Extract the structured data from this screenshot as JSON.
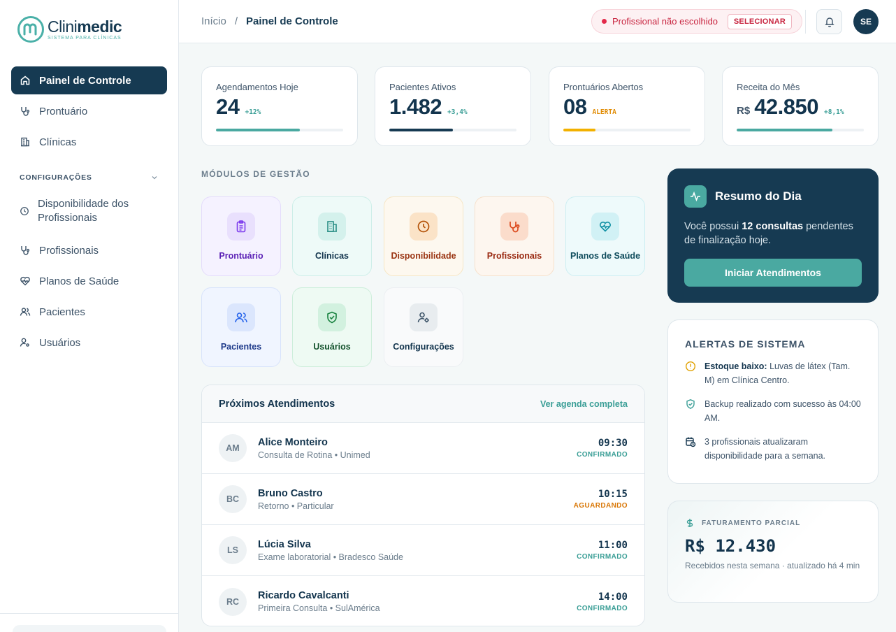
{
  "brand": {
    "name_light": "Clini",
    "name_bold": "medic",
    "tagline": "SISTEMA PARA CLÍNICAS",
    "accent": "#4ab0a8",
    "primary": "#163a52"
  },
  "sidebar": {
    "main_items": [
      {
        "label": "Painel de Controle",
        "icon": "home-icon",
        "active": true
      },
      {
        "label": "Prontuário",
        "icon": "stethoscope-icon"
      },
      {
        "label": "Clínicas",
        "icon": "building-icon"
      }
    ],
    "section_label": "CONFIGURAÇÕES",
    "config_items": [
      {
        "label": "Disponibilidade dos Profissionais",
        "icon": "clock-icon"
      },
      {
        "label": "Profissionais",
        "icon": "stethoscope-icon"
      },
      {
        "label": "Planos de Saúde",
        "icon": "heart-pulse-icon"
      },
      {
        "label": "Pacientes",
        "icon": "users-icon"
      },
      {
        "label": "Usuários",
        "icon": "user-gear-icon"
      }
    ]
  },
  "header": {
    "breadcrumb": {
      "home": "Início",
      "separator": "/",
      "current": "Painel de Controle"
    },
    "professional_badge": {
      "text": "Profissional não escolhido",
      "button": "SELECIONAR"
    },
    "avatar_initials": "SE"
  },
  "stats": [
    {
      "label": "Agendamentos Hoje",
      "prefix": "",
      "value": "24",
      "delta": "+12%",
      "delta_color": "#3a9e96",
      "progress": 0.66,
      "bar_color": "#4aa9a1"
    },
    {
      "label": "Pacientes Ativos",
      "prefix": "",
      "value": "1.482",
      "delta": "+3,4%",
      "delta_color": "#3a9e96",
      "progress": 0.5,
      "bar_color": "#163a52"
    },
    {
      "label": "Prontuários Abertos",
      "prefix": "",
      "value": "08",
      "delta": "ALERTA",
      "delta_color": "#e08a00",
      "progress": 0.25,
      "bar_color": "#f2b100"
    },
    {
      "label": "Receita do Mês",
      "prefix": "R$",
      "value": "42.850",
      "delta": "+8,1%",
      "delta_color": "#3a9e96",
      "progress": 0.75,
      "bar_color": "#4aa9a1"
    }
  ],
  "modules": {
    "title": "MÓDULOS DE GESTÃO",
    "items": [
      {
        "label": "Prontuário",
        "icon": "clipboard-icon",
        "bg": "#f5f2ff",
        "border": "#e4dcfb",
        "icon_bg": "#e9e0fd",
        "color": "#5b21b6"
      },
      {
        "label": "Clínicas",
        "icon": "building-icon",
        "bg": "#eefaf8",
        "border": "#cdeee8",
        "icon_bg": "#d4f1ec",
        "color": "#12344d"
      },
      {
        "label": "Disponibilidade",
        "icon": "clock-icon",
        "bg": "#fdf8ef",
        "border": "#f6e6c5",
        "icon_bg": "#fbe3c7",
        "color": "#9a3412"
      },
      {
        "label": "Profissionais",
        "icon": "stethoscope-icon",
        "bg": "#fdf6ef",
        "border": "#f6e1cc",
        "icon_bg": "#fbdccb",
        "color": "#9a2a12"
      },
      {
        "label": "Planos de Saúde",
        "icon": "heart-pulse-icon",
        "bg": "#eefafb",
        "border": "#cdeef2",
        "icon_bg": "#d1f1f5",
        "color": "#0f4c5c"
      },
      {
        "label": "Pacientes",
        "icon": "users-icon",
        "bg": "#f0f5ff",
        "border": "#d8e3fb",
        "icon_bg": "#dbe6fd",
        "color": "#1e3a8a"
      },
      {
        "label": "Usuários",
        "icon": "shield-check-icon",
        "bg": "#eefaf3",
        "border": "#cdeedb",
        "icon_bg": "#d2f1df",
        "color": "#14532d"
      },
      {
        "label": "Configurações",
        "icon": "user-gear-icon",
        "bg": "#f9fafb",
        "border": "#eceff2",
        "icon_bg": "#e8ecef",
        "color": "#12344d"
      }
    ]
  },
  "appointments": {
    "title": "Próximos Atendimentos",
    "link": "Ver agenda completa",
    "rows": [
      {
        "initials": "AM",
        "name": "Alice Monteiro",
        "detail": "Consulta de Rotina • Unimed",
        "time": "09:30",
        "status": "CONFIRMADO",
        "status_color": "#3a9e96"
      },
      {
        "initials": "BC",
        "name": "Bruno Castro",
        "detail": "Retorno • Particular",
        "time": "10:15",
        "status": "AGUARDANDO",
        "status_color": "#d97706"
      },
      {
        "initials": "LS",
        "name": "Lúcia Silva",
        "detail": "Exame laboratorial • Bradesco Saúde",
        "time": "11:00",
        "status": "CONFIRMADO",
        "status_color": "#3a9e96"
      },
      {
        "initials": "RC",
        "name": "Ricardo Cavalcanti",
        "detail": "Primeira Consulta • SulAmérica",
        "time": "14:00",
        "status": "CONFIRMADO",
        "status_color": "#3a9e96"
      }
    ]
  },
  "resumo": {
    "title": "Resumo do Dia",
    "text_before": "Você possui ",
    "text_bold": "12 consultas",
    "text_after": " pendentes de finalização hoje.",
    "button": "Iniciar Atendimentos"
  },
  "alerts": {
    "title": "ALERTAS DE SISTEMA",
    "items": [
      {
        "icon": "alert-circle-icon",
        "bold": "Estoque baixo:",
        "text": " Luvas de látex (Tam. M) em Clínica Centro."
      },
      {
        "icon": "shield-check-icon",
        "bold": "",
        "text": "Backup realizado com sucesso às 04:00 AM."
      },
      {
        "icon": "calendar-clock-icon",
        "bold": "",
        "text": "3 profissionais atualizaram disponibilidade para a semana."
      }
    ]
  },
  "faturamento": {
    "label": "FATURAMENTO PARCIAL",
    "value": "R$ 12.430",
    "sub": "Recebidos nesta semana · atualizado há 4 min"
  }
}
